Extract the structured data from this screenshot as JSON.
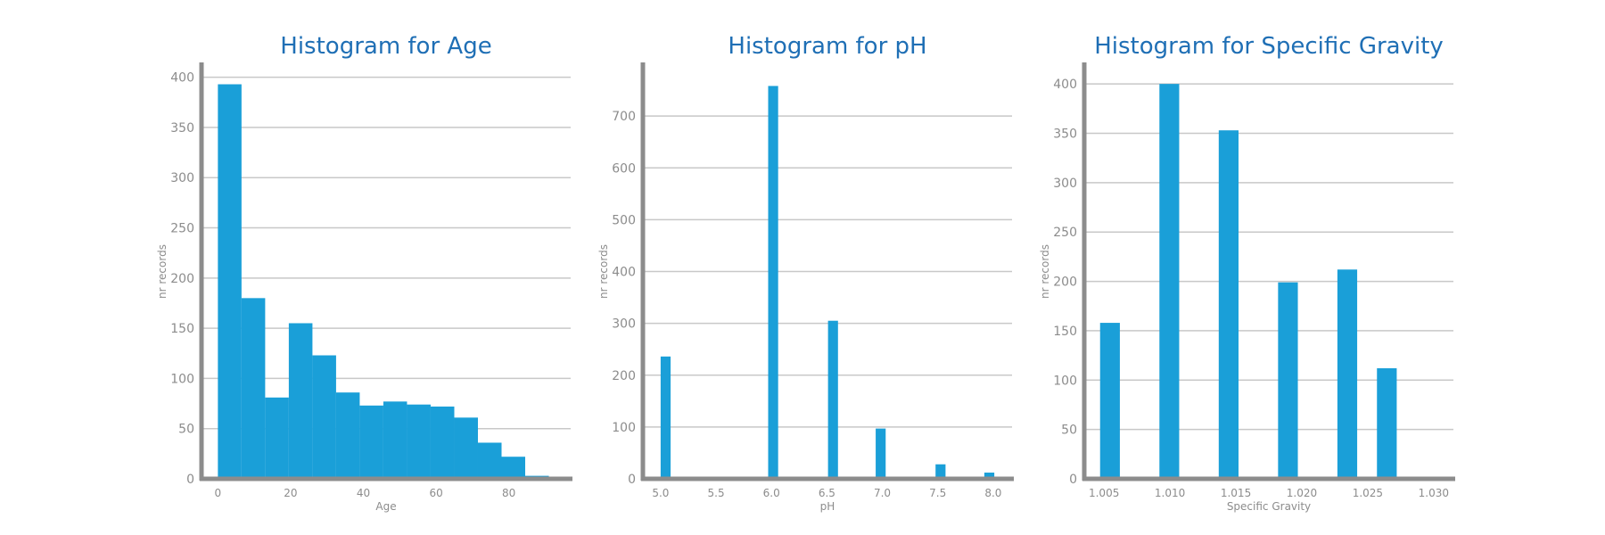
{
  "chart_data": [
    {
      "type": "bar",
      "title": "Histogram for Age",
      "xlabel": "Age",
      "ylabel": "nr records",
      "xlim": [
        -4.5,
        97
      ],
      "ylim": [
        0,
        413
      ],
      "xticks": [
        0,
        20,
        40,
        60,
        80
      ],
      "xtick_labels": [
        "0",
        "20",
        "40",
        "60",
        "80"
      ],
      "yticks": [
        0,
        50,
        100,
        150,
        200,
        250,
        300,
        350,
        400
      ],
      "ytick_labels": [
        "0",
        "50",
        "100",
        "150",
        "200",
        "250",
        "300",
        "350",
        "400"
      ],
      "grid": true,
      "bars": [
        {
          "x0": 0,
          "x1": 6.5,
          "value": 393
        },
        {
          "x0": 6.5,
          "x1": 13,
          "value": 180
        },
        {
          "x0": 13,
          "x1": 19.5,
          "value": 81
        },
        {
          "x0": 19.5,
          "x1": 26,
          "value": 155
        },
        {
          "x0": 26,
          "x1": 32.5,
          "value": 123
        },
        {
          "x0": 32.5,
          "x1": 39,
          "value": 86
        },
        {
          "x0": 39,
          "x1": 45.5,
          "value": 73
        },
        {
          "x0": 45.5,
          "x1": 52,
          "value": 77
        },
        {
          "x0": 52,
          "x1": 58.5,
          "value": 74
        },
        {
          "x0": 58.5,
          "x1": 65,
          "value": 72
        },
        {
          "x0": 65,
          "x1": 71.5,
          "value": 61
        },
        {
          "x0": 71.5,
          "x1": 78,
          "value": 36
        },
        {
          "x0": 78,
          "x1": 84.5,
          "value": 22
        },
        {
          "x0": 84.5,
          "x1": 91,
          "value": 3
        }
      ]
    },
    {
      "type": "bar",
      "title": "Histogram for pH",
      "xlabel": "pH",
      "ylabel": "nr records",
      "xlim": [
        4.84,
        8.17
      ],
      "ylim": [
        0,
        800
      ],
      "xticks": [
        5.0,
        5.5,
        6.0,
        6.5,
        7.0,
        7.5,
        8.0
      ],
      "xtick_labels": [
        "5.0",
        "5.5",
        "6.0",
        "6.5",
        "7.0",
        "7.5",
        "8.0"
      ],
      "yticks": [
        0,
        100,
        200,
        300,
        400,
        500,
        600,
        700
      ],
      "ytick_labels": [
        "0",
        "100",
        "200",
        "300",
        "400",
        "500",
        "600",
        "700"
      ],
      "grid": true,
      "bars": [
        {
          "x0": 5.0,
          "x1": 5.09,
          "value": 236
        },
        {
          "x0": 5.48,
          "x1": 5.57,
          "value": 2
        },
        {
          "x0": 5.97,
          "x1": 6.06,
          "value": 758
        },
        {
          "x0": 6.51,
          "x1": 6.6,
          "value": 305
        },
        {
          "x0": 6.94,
          "x1": 7.03,
          "value": 97
        },
        {
          "x0": 7.48,
          "x1": 7.57,
          "value": 28
        },
        {
          "x0": 7.92,
          "x1": 8.01,
          "value": 12
        }
      ]
    },
    {
      "type": "bar",
      "title": "Histogram for Specific Gravity",
      "xlabel": "Specific Gravity",
      "ylabel": "nr records",
      "xlim": [
        1.0035,
        1.0315
      ],
      "ylim": [
        0,
        420
      ],
      "xticks": [
        1.005,
        1.01,
        1.015,
        1.02,
        1.025,
        1.03
      ],
      "xtick_labels": [
        "1.005",
        "1.010",
        "1.015",
        "1.020",
        "1.025",
        "1.030"
      ],
      "yticks": [
        0,
        50,
        100,
        150,
        200,
        250,
        300,
        350,
        400
      ],
      "ytick_labels": [
        "0",
        "50",
        "100",
        "150",
        "200",
        "250",
        "300",
        "350",
        "400"
      ],
      "grid": true,
      "bars": [
        {
          "x0": 1.0047,
          "x1": 1.0062,
          "value": 158
        },
        {
          "x0": 1.0092,
          "x1": 1.0107,
          "value": 400
        },
        {
          "x0": 1.0137,
          "x1": 1.0152,
          "value": 353
        },
        {
          "x0": 1.0182,
          "x1": 1.0197,
          "value": 199
        },
        {
          "x0": 1.0227,
          "x1": 1.0242,
          "value": 212
        },
        {
          "x0": 1.0257,
          "x1": 1.0272,
          "value": 112
        }
      ]
    }
  ]
}
